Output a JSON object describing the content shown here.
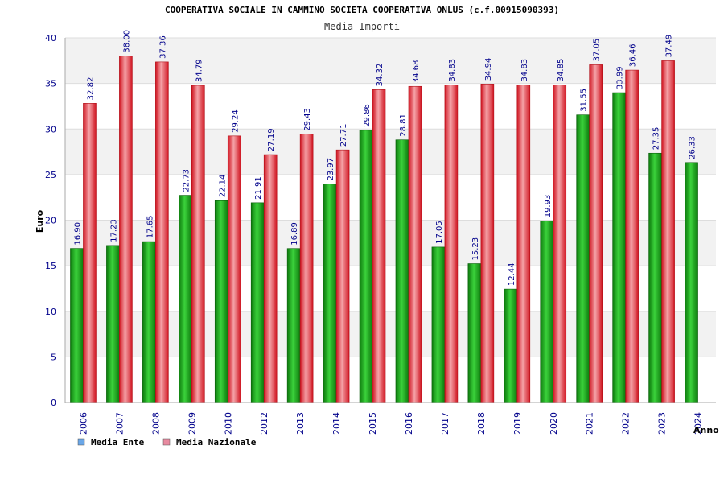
{
  "chart_data": {
    "type": "bar",
    "title": "COOPERATIVA SOCIALE IN CAMMINO SOCIETA COOPERATIVA ONLUS (c.f.00915090393)",
    "subtitle": "Media Importi",
    "xlabel": "Anno",
    "ylabel": "Euro",
    "ylim": [
      0,
      40
    ],
    "yticks": [
      "0",
      "5",
      "10",
      "15",
      "20",
      "25",
      "30",
      "35",
      "40"
    ],
    "grid": true,
    "legend_placement": "bottom-left",
    "categories": [
      "2006",
      "2007",
      "2008",
      "2009",
      "2010",
      "2012",
      "2013",
      "2014",
      "2015",
      "2016",
      "2017",
      "2018",
      "2019",
      "2020",
      "2021",
      "2022",
      "2023",
      "2024"
    ],
    "series": [
      {
        "name": "Media Ente",
        "color": "#1fa51f",
        "values": [
          16.9,
          17.23,
          17.65,
          22.73,
          22.14,
          21.91,
          16.89,
          23.97,
          29.86,
          28.81,
          17.05,
          15.23,
          12.44,
          19.93,
          31.55,
          33.99,
          27.35,
          26.33
        ],
        "labels": [
          "16.90",
          "17.23",
          "17.65",
          "22.73",
          "22.14",
          "21.91",
          "16.89",
          "23.97",
          "29.86",
          "28.81",
          "17.05",
          "15.23",
          "12.44",
          "19.93",
          "31.55",
          "33.99",
          "27.35",
          "26.33"
        ]
      },
      {
        "name": "Media Nazionale",
        "color": "#e8232b",
        "values": [
          32.82,
          38.0,
          37.36,
          34.79,
          29.24,
          27.19,
          29.43,
          27.71,
          34.32,
          34.68,
          34.83,
          34.94,
          34.83,
          34.85,
          37.05,
          36.46,
          37.49,
          null
        ],
        "labels": [
          "32.82",
          "38.00",
          "37.36",
          "34.79",
          "29.24",
          "27.19",
          "29.43",
          "27.71",
          "34.32",
          "34.68",
          "34.83",
          "34.94",
          "34.83",
          "34.85",
          "37.05",
          "36.46",
          "37.49",
          ""
        ]
      }
    ],
    "legend": [
      {
        "label": "Media Ente",
        "color": "#6aa7e8"
      },
      {
        "label": "Media Nazionale",
        "color": "#e88aa0"
      }
    ]
  }
}
